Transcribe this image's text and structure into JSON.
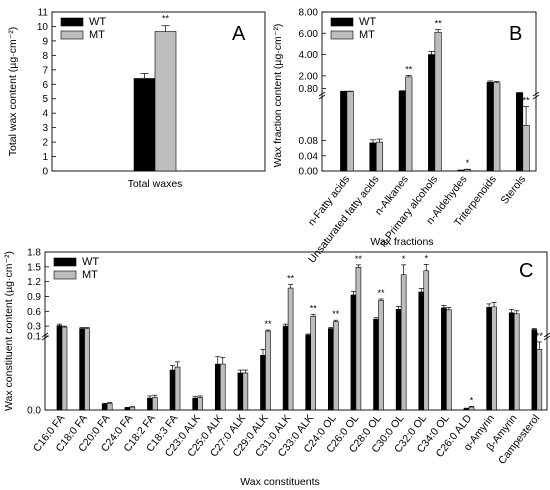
{
  "chart_data": [
    {
      "type": "bar",
      "panel_label": "A",
      "ylabel": "Total wax content (µg·cm⁻²)",
      "ylim": [
        0,
        11
      ],
      "yticks": [
        "0",
        "1",
        "2",
        "3",
        "4",
        "5",
        "6",
        "7",
        "8",
        "9",
        "10",
        "11"
      ],
      "categories": [
        "Total waxes"
      ],
      "series": [
        {
          "name": "WT",
          "color": "#000000",
          "values": [
            6.4
          ],
          "errors": [
            0.35
          ]
        },
        {
          "name": "MT",
          "color": "#bdbdbd",
          "values": [
            9.65
          ],
          "errors": [
            0.4
          ]
        }
      ],
      "significance": [
        "**"
      ],
      "legend_position": "top-left",
      "grid": false
    },
    {
      "type": "bar",
      "panel_label": "B",
      "xlabel": "Wax fractions",
      "ylabel": "Wax fraction content (µg·cm⁻²)",
      "y_axis_break": {
        "lower": [
          0,
          0.2
        ],
        "upper": [
          0.2,
          8.0
        ]
      },
      "yticks": [
        "0.00",
        "0.04",
        "0.08",
        "0.80",
        "2.00",
        "4.00",
        "6.00",
        "8.00"
      ],
      "categories": [
        "n-Fatty acids",
        "Unsaturated fatty acids",
        "n-Alkanes",
        "n-Primary alcohols",
        "n-Aldehydes",
        "Triterpenoids",
        "Sterols"
      ],
      "series": [
        {
          "name": "WT",
          "color": "#000000",
          "values": [
            0.53,
            0.074,
            0.55,
            4.0,
            0.002,
            1.4,
            0.4
          ],
          "errors": [
            0.03,
            0.008,
            0.05,
            0.3,
            0.0005,
            0.12,
            0.03
          ]
        },
        {
          "name": "MT",
          "color": "#bdbdbd",
          "values": [
            0.53,
            0.076,
            1.9,
            6.1,
            0.004,
            1.35,
            0.12
          ],
          "errors": [
            0.03,
            0.008,
            0.12,
            0.25,
            0.0008,
            0.12,
            0.05
          ]
        }
      ],
      "significance": [
        "",
        "",
        "**",
        "**",
        "*",
        "",
        "**"
      ],
      "legend_position": "top-left",
      "grid": false
    },
    {
      "type": "bar",
      "panel_label": "C",
      "xlabel": "Wax constituents",
      "ylabel": "Wax constituent content (µg·cm⁻²)",
      "y_axis_break": {
        "lower": [
          0,
          0.1
        ],
        "upper": [
          0.1,
          1.8
        ]
      },
      "yticks": [
        "0.0",
        "0.1",
        "0.3",
        "0.6",
        "0.9",
        "1.2",
        "1.5",
        "1.8"
      ],
      "categories": [
        "C16:0 FA",
        "C18:0 FA",
        "C20:0 FA",
        "C24:0 FA",
        "C18:2 FA",
        "C18:3 FA",
        "C23:0 ALK",
        "C25:0 ALK",
        "C27:0 ALK",
        "C29:0 ALK",
        "C31:0 ALK",
        "C33:0 ALK",
        "C24:0 OL",
        "C26:0 OL",
        "C28:0 OL",
        "C30:0 OL",
        "C32:0 OL",
        "C34:0 OL",
        "C26:0 ALD",
        "α-Amyrin",
        "β-Amyrin",
        "Campesterol"
      ],
      "series": [
        {
          "name": "WT",
          "color": "#000000",
          "values": [
            0.31,
            0.25,
            0.008,
            0.003,
            0.016,
            0.054,
            0.016,
            0.062,
            0.05,
            0.074,
            0.3,
            0.12,
            0.25,
            0.93,
            0.44,
            0.64,
            0.99,
            0.67,
            0.002,
            0.68,
            0.57,
            0.23
          ],
          "errors": [
            0.03,
            0.02,
            0.001,
            0.0005,
            0.003,
            0.006,
            0.002,
            0.01,
            0.004,
            0.008,
            0.04,
            0.02,
            0.02,
            0.07,
            0.03,
            0.06,
            0.07,
            0.05,
            0.0005,
            0.07,
            0.07,
            0.02
          ]
        },
        {
          "name": "MT",
          "color": "#bdbdbd",
          "values": [
            0.28,
            0.25,
            0.009,
            0.004,
            0.017,
            0.058,
            0.017,
            0.062,
            0.05,
            0.2,
            1.07,
            0.5,
            0.39,
            1.49,
            0.82,
            1.34,
            1.42,
            0.63,
            0.004,
            0.69,
            0.55,
            0.082
          ],
          "errors": [
            0.02,
            0.02,
            0.001,
            0.0005,
            0.003,
            0.007,
            0.002,
            0.009,
            0.004,
            0.02,
            0.07,
            0.04,
            0.03,
            0.05,
            0.03,
            0.2,
            0.13,
            0.05,
            0.0008,
            0.09,
            0.06,
            0.01
          ]
        }
      ],
      "significance": [
        "",
        "",
        "",
        "",
        "",
        "",
        "",
        "",
        "",
        "**",
        "**",
        "**",
        "**",
        "**",
        "**",
        "*",
        "*",
        "",
        "*",
        "",
        "",
        "**"
      ],
      "legend_position": "top-left",
      "grid": false
    }
  ]
}
